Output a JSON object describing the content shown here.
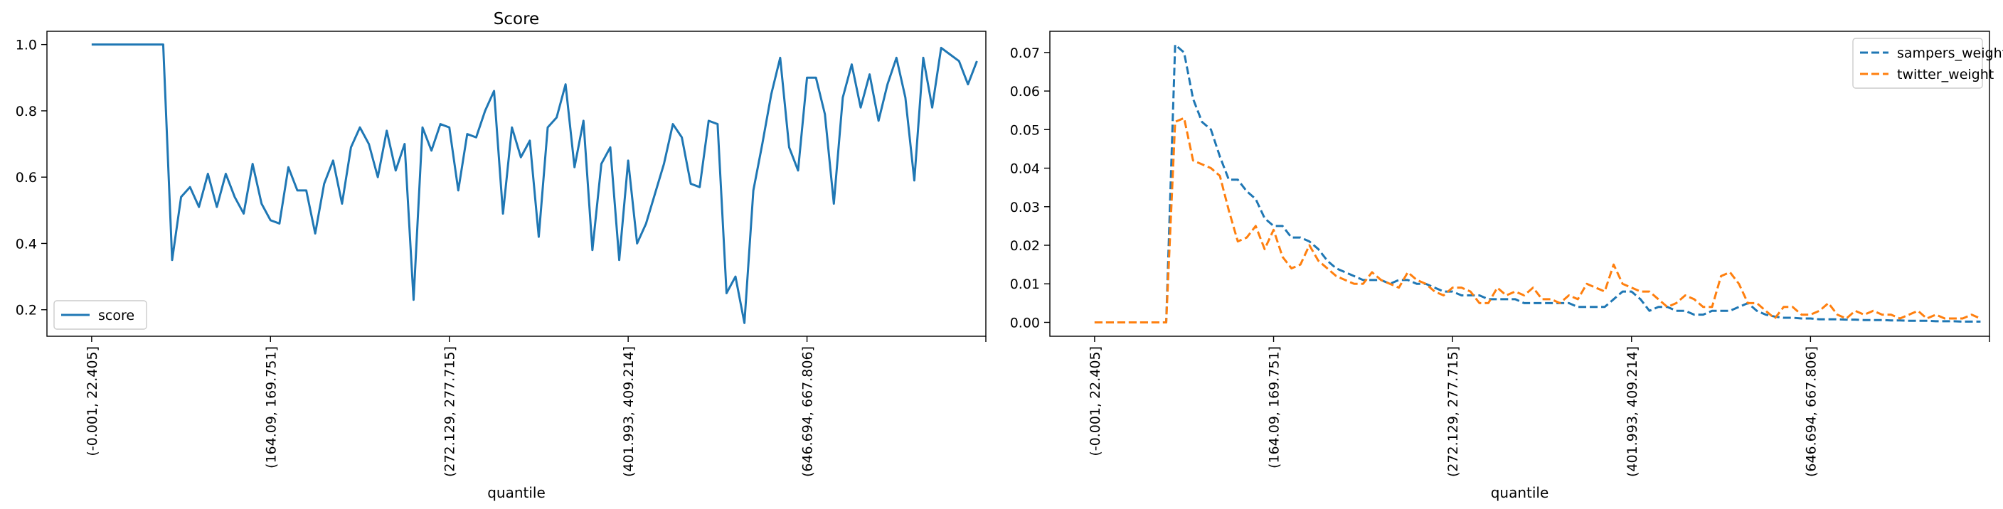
{
  "chart_data": [
    {
      "type": "line",
      "title": "Score",
      "xlabel": "quantile",
      "ylabel": "",
      "ylim": [
        0.12,
        1.04
      ],
      "xlim": [
        -5,
        100
      ],
      "legend": "lower-left",
      "grid": false,
      "yticks": [
        0.2,
        0.4,
        0.6,
        0.8,
        1.0
      ],
      "ytick_labels": [
        "0.2",
        "0.4",
        "0.6",
        "0.8",
        "1.0"
      ],
      "xtick_positions": [
        0,
        20,
        40,
        60,
        80,
        100
      ],
      "xtick_labels": [
        "(-0.001, 22.405]",
        "(164.09, 169.751]",
        "(272.129, 277.715]",
        "(401.993, 409.214]",
        "(646.694, 667.806]",
        ""
      ],
      "series": [
        {
          "name": "score",
          "color": "#1f77b4",
          "dash": "solid",
          "values": [
            1.0,
            1.0,
            1.0,
            1.0,
            1.0,
            1.0,
            1.0,
            1.0,
            1.0,
            0.35,
            0.54,
            0.57,
            0.51,
            0.61,
            0.51,
            0.61,
            0.54,
            0.49,
            0.64,
            0.52,
            0.47,
            0.46,
            0.63,
            0.56,
            0.56,
            0.43,
            0.58,
            0.65,
            0.52,
            0.69,
            0.75,
            0.7,
            0.6,
            0.74,
            0.62,
            0.7,
            0.23,
            0.75,
            0.68,
            0.76,
            0.75,
            0.56,
            0.73,
            0.72,
            0.8,
            0.86,
            0.49,
            0.75,
            0.66,
            0.71,
            0.42,
            0.75,
            0.78,
            0.88,
            0.63,
            0.77,
            0.38,
            0.64,
            0.69,
            0.35,
            0.65,
            0.4,
            0.46,
            0.55,
            0.64,
            0.76,
            0.72,
            0.58,
            0.57,
            0.77,
            0.76,
            0.25,
            0.3,
            0.16,
            0.56,
            0.7,
            0.85,
            0.96,
            0.69,
            0.62,
            0.9,
            0.9,
            0.79,
            0.52,
            0.84,
            0.94,
            0.81,
            0.91,
            0.77,
            0.88,
            0.96,
            0.84,
            0.59,
            0.96,
            0.81,
            0.99,
            0.97,
            0.95,
            0.88,
            0.95
          ]
        }
      ]
    },
    {
      "type": "line",
      "title": "",
      "xlabel": "quantile",
      "ylabel": "",
      "ylim": [
        -0.0036,
        0.0755
      ],
      "xlim": [
        -5,
        100
      ],
      "legend": "top-right",
      "grid": false,
      "yticks": [
        0.0,
        0.01,
        0.02,
        0.03,
        0.04,
        0.05,
        0.06,
        0.07
      ],
      "ytick_labels": [
        "0.00",
        "0.01",
        "0.02",
        "0.03",
        "0.04",
        "0.05",
        "0.06",
        "0.07"
      ],
      "xtick_positions": [
        0,
        20,
        40,
        60,
        80,
        100
      ],
      "xtick_labels": [
        "(-0.001, 22.405]",
        "(164.09, 169.751]",
        "(272.129, 277.715]",
        "(401.993, 409.214]",
        "(646.694, 667.806]",
        ""
      ],
      "series": [
        {
          "name": "sampers_weight",
          "color": "#1f77b4",
          "dash": "dashed",
          "values": [
            0.0,
            0.0,
            0.0,
            0.0,
            0.0,
            0.0,
            0.0,
            0.0,
            0.0,
            0.072,
            0.07,
            0.058,
            0.052,
            0.05,
            0.043,
            0.037,
            0.037,
            0.034,
            0.032,
            0.027,
            0.025,
            0.025,
            0.022,
            0.022,
            0.021,
            0.019,
            0.016,
            0.014,
            0.013,
            0.012,
            0.011,
            0.011,
            0.011,
            0.01,
            0.011,
            0.011,
            0.01,
            0.01,
            0.009,
            0.008,
            0.008,
            0.007,
            0.007,
            0.007,
            0.006,
            0.006,
            0.006,
            0.006,
            0.005,
            0.005,
            0.005,
            0.005,
            0.005,
            0.005,
            0.004,
            0.004,
            0.004,
            0.004,
            0.006,
            0.008,
            0.008,
            0.006,
            0.003,
            0.004,
            0.004,
            0.003,
            0.003,
            0.002,
            0.002,
            0.003,
            0.003,
            0.003,
            0.004,
            0.005,
            0.003,
            0.002,
            0.0015,
            0.0012,
            0.0012,
            0.001,
            0.001,
            0.0008,
            0.0008,
            0.0008,
            0.0007,
            0.0007,
            0.0006,
            0.0006,
            0.0006,
            0.0005,
            0.0005,
            0.0004,
            0.0004,
            0.0004,
            0.0003,
            0.0003,
            0.0003,
            0.0002,
            0.0002,
            0.0002
          ]
        },
        {
          "name": "twitter_weight",
          "color": "#ff7f0e",
          "dash": "dashed",
          "values": [
            0.0,
            0.0,
            0.0,
            0.0,
            0.0,
            0.0,
            0.0,
            0.0,
            0.0,
            0.052,
            0.053,
            0.042,
            0.041,
            0.04,
            0.038,
            0.029,
            0.021,
            0.022,
            0.025,
            0.019,
            0.024,
            0.017,
            0.014,
            0.015,
            0.02,
            0.016,
            0.014,
            0.012,
            0.011,
            0.01,
            0.01,
            0.013,
            0.011,
            0.01,
            0.009,
            0.013,
            0.011,
            0.01,
            0.008,
            0.007,
            0.009,
            0.009,
            0.008,
            0.005,
            0.005,
            0.009,
            0.007,
            0.008,
            0.007,
            0.009,
            0.006,
            0.006,
            0.005,
            0.007,
            0.006,
            0.01,
            0.009,
            0.008,
            0.015,
            0.01,
            0.009,
            0.008,
            0.008,
            0.006,
            0.004,
            0.005,
            0.007,
            0.006,
            0.004,
            0.004,
            0.012,
            0.013,
            0.01,
            0.005,
            0.005,
            0.003,
            0.001,
            0.004,
            0.004,
            0.002,
            0.002,
            0.003,
            0.005,
            0.002,
            0.001,
            0.003,
            0.002,
            0.003,
            0.002,
            0.002,
            0.001,
            0.002,
            0.003,
            0.001,
            0.002,
            0.001,
            0.001,
            0.001,
            0.002,
            0.001
          ]
        }
      ]
    }
  ]
}
